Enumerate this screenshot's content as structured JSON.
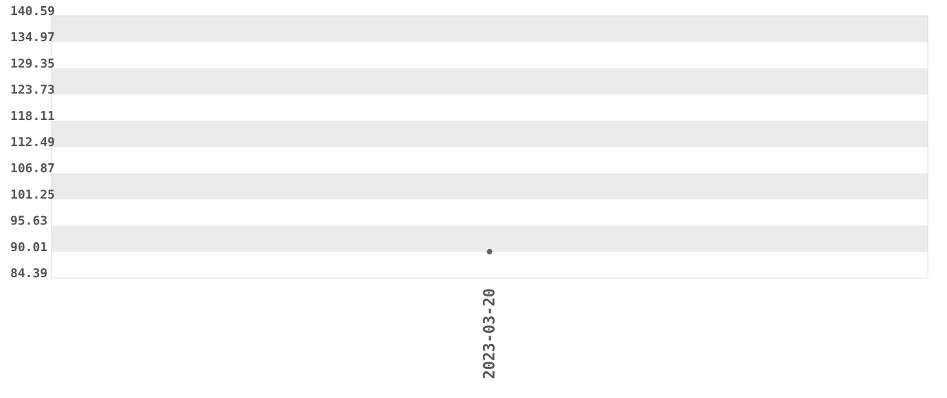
{
  "chart_data": {
    "type": "line",
    "categories": [
      "2023-03-20"
    ],
    "values": [
      90.01
    ],
    "color": "#666666",
    "ylim": [
      84.39,
      140.59
    ],
    "yticks": [
      84.39,
      90.01,
      95.63,
      101.25,
      106.87,
      112.49,
      118.11,
      123.73,
      129.35,
      134.97,
      140.59
    ],
    "grid": true
  }
}
